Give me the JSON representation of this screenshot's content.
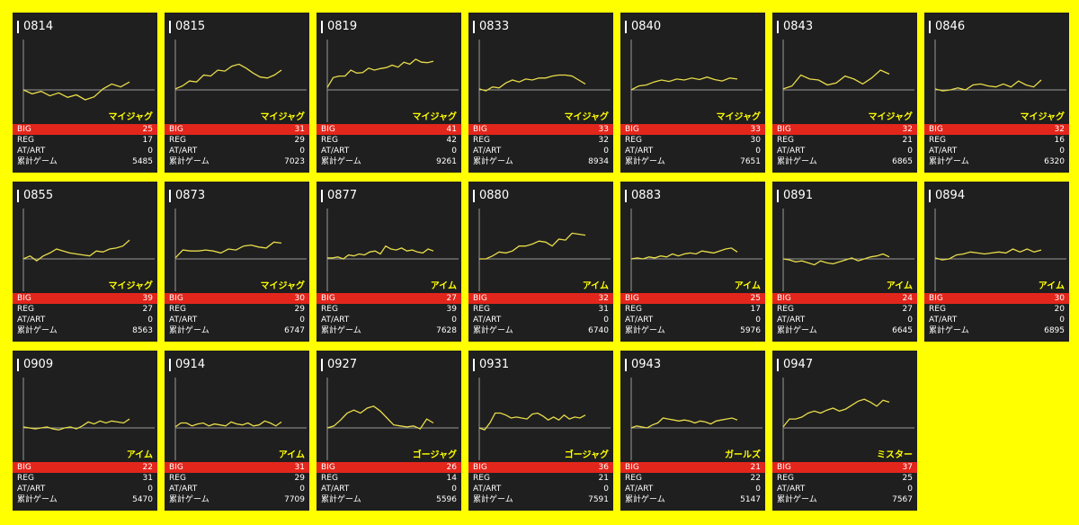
{
  "labels": {
    "big": "BIG",
    "reg": "REG",
    "at": "AT/ART",
    "games": "累計ゲーム"
  },
  "colors": {
    "background": "#ffff00",
    "card": "#1f1f1f",
    "big_row": "#e3261c",
    "line": "#e8dc4a",
    "model": "#ffff00"
  },
  "cards": [
    {
      "no": "0814",
      "model": "マイジャグ",
      "big": "25",
      "reg": "17",
      "at": "0",
      "games": "5485",
      "trend": [
        0,
        -8,
        -3,
        -12,
        -6,
        -15,
        -10,
        -20,
        -14,
        2,
        12,
        6,
        16
      ]
    },
    {
      "no": "0815",
      "model": "マイジャグ",
      "big": "31",
      "reg": "29",
      "at": "0",
      "games": "7023",
      "trend": [
        2,
        8,
        18,
        16,
        30,
        28,
        40,
        38,
        48,
        52,
        44,
        34,
        26,
        24,
        30,
        40
      ]
    },
    {
      "no": "0819",
      "model": "マイジャグ",
      "big": "41",
      "reg": "42",
      "at": "0",
      "games": "9261",
      "trend": [
        5,
        25,
        28,
        28,
        40,
        34,
        35,
        44,
        40,
        43,
        45,
        50,
        46,
        56,
        52,
        62,
        56,
        55,
        58
      ]
    },
    {
      "no": "0833",
      "model": "マイジャグ",
      "big": "33",
      "reg": "32",
      "at": "0",
      "games": "8934",
      "trend": [
        2,
        -2,
        6,
        4,
        14,
        20,
        16,
        22,
        20,
        24,
        24,
        28,
        30,
        30,
        28,
        20,
        12
      ]
    },
    {
      "no": "0840",
      "model": "マイジャグ",
      "big": "33",
      "reg": "30",
      "at": "0",
      "games": "7651",
      "trend": [
        0,
        8,
        10,
        16,
        20,
        17,
        22,
        20,
        24,
        21,
        26,
        21,
        18,
        24,
        22
      ]
    },
    {
      "no": "0843",
      "model": "マイジャグ",
      "big": "32",
      "reg": "21",
      "at": "0",
      "games": "6865",
      "trend": [
        2,
        8,
        30,
        22,
        20,
        10,
        14,
        28,
        22,
        12,
        24,
        40,
        32
      ]
    },
    {
      "no": "0846",
      "model": "マイジャグ",
      "big": "32",
      "reg": "16",
      "at": "0",
      "games": "6320",
      "trend": [
        2,
        -2,
        0,
        4,
        0,
        10,
        12,
        8,
        6,
        12,
        6,
        18,
        10,
        6,
        20
      ]
    },
    {
      "no": "0855",
      "model": "マイジャグ",
      "big": "39",
      "reg": "27",
      "at": "0",
      "games": "8563",
      "trend": [
        0,
        6,
        -4,
        6,
        12,
        20,
        16,
        12,
        10,
        8,
        6,
        16,
        14,
        20,
        22,
        26,
        38
      ]
    },
    {
      "no": "0873",
      "model": "マイジャグ",
      "big": "30",
      "reg": "29",
      "at": "0",
      "games": "6747",
      "trend": [
        2,
        18,
        16,
        16,
        18,
        16,
        12,
        20,
        18,
        26,
        28,
        24,
        22,
        34,
        32
      ]
    },
    {
      "no": "0877",
      "model": "アイム",
      "big": "27",
      "reg": "39",
      "at": "0",
      "games": "7628",
      "trend": [
        2,
        2,
        4,
        0,
        8,
        6,
        10,
        8,
        14,
        16,
        10,
        26,
        20,
        18,
        22,
        16,
        18,
        14,
        12,
        20,
        16
      ]
    },
    {
      "no": "0880",
      "model": "アイム",
      "big": "32",
      "reg": "31",
      "at": "0",
      "games": "6740",
      "trend": [
        0,
        0,
        6,
        14,
        12,
        16,
        26,
        26,
        30,
        36,
        34,
        26,
        40,
        38,
        52,
        50,
        48
      ]
    },
    {
      "no": "0883",
      "model": "アイム",
      "big": "25",
      "reg": "17",
      "at": "0",
      "games": "5976",
      "trend": [
        0,
        2,
        0,
        4,
        2,
        6,
        4,
        10,
        6,
        10,
        12,
        10,
        16,
        14,
        12,
        16,
        20,
        22,
        14
      ]
    },
    {
      "no": "0891",
      "model": "アイム",
      "big": "24",
      "reg": "27",
      "at": "0",
      "games": "6645",
      "trend": [
        0,
        -2,
        -6,
        -4,
        -8,
        -12,
        -4,
        -8,
        -10,
        -6,
        -2,
        2,
        -4,
        0,
        4,
        6,
        10,
        4
      ]
    },
    {
      "no": "0894",
      "model": "アイム",
      "big": "30",
      "reg": "20",
      "at": "0",
      "games": "6895",
      "trend": [
        2,
        -2,
        0,
        8,
        10,
        14,
        12,
        10,
        12,
        14,
        12,
        20,
        14,
        20,
        14,
        18
      ]
    },
    {
      "no": "0909",
      "model": "アイム",
      "big": "22",
      "reg": "31",
      "at": "0",
      "games": "5470",
      "trend": [
        2,
        0,
        -2,
        0,
        2,
        -2,
        -4,
        0,
        2,
        -2,
        4,
        12,
        8,
        14,
        10,
        14,
        12,
        10,
        18
      ]
    },
    {
      "no": "0914",
      "model": "アイム",
      "big": "31",
      "reg": "29",
      "at": "0",
      "games": "7709",
      "trend": [
        2,
        10,
        10,
        4,
        8,
        10,
        4,
        8,
        6,
        4,
        12,
        8,
        6,
        10,
        4,
        6,
        14,
        10,
        4,
        12
      ]
    },
    {
      "no": "0927",
      "model": "ゴージャグ",
      "big": "26",
      "reg": "14",
      "at": "0",
      "games": "5596",
      "trend": [
        0,
        4,
        16,
        30,
        36,
        30,
        40,
        44,
        34,
        20,
        6,
        4,
        2,
        4,
        -2,
        18,
        10
      ]
    },
    {
      "no": "0931",
      "model": "ゴージャグ",
      "big": "36",
      "reg": "21",
      "at": "0",
      "games": "7591",
      "trend": [
        0,
        -4,
        10,
        30,
        30,
        26,
        20,
        22,
        20,
        18,
        28,
        30,
        24,
        16,
        22,
        16,
        26,
        18,
        22,
        20,
        26
      ]
    },
    {
      "no": "0943",
      "model": "ガールズ",
      "big": "21",
      "reg": "22",
      "at": "0",
      "games": "5147",
      "trend": [
        0,
        4,
        2,
        0,
        6,
        10,
        20,
        18,
        16,
        14,
        16,
        14,
        10,
        14,
        12,
        8,
        14,
        16,
        18,
        20,
        16
      ]
    },
    {
      "no": "0947",
      "model": "ミスター",
      "big": "37",
      "reg": "25",
      "at": "0",
      "games": "7567",
      "trend": [
        2,
        18,
        18,
        22,
        30,
        34,
        30,
        36,
        40,
        34,
        38,
        46,
        54,
        58,
        52,
        44,
        56,
        52
      ]
    }
  ]
}
